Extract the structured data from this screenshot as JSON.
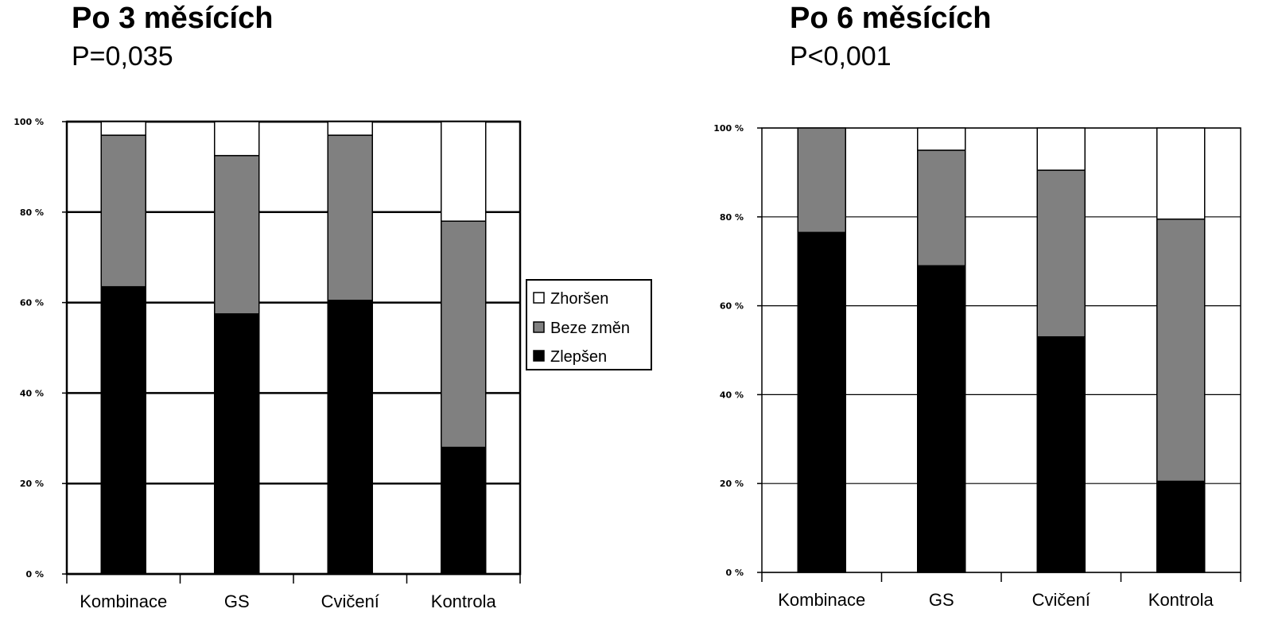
{
  "charts": [
    {
      "title": "Po 3  měsících",
      "subtitle": "P=0,035"
    },
    {
      "title": "Po 6  měsících",
      "subtitle": "P<0,001"
    }
  ],
  "legend": {
    "items": [
      {
        "label": "Zhoršen",
        "color": "#ffffff"
      },
      {
        "label": "Beze změn",
        "color": "#808080"
      },
      {
        "label": "Zlepšen",
        "color": "#000000"
      }
    ]
  },
  "chart_data": [
    {
      "type": "bar",
      "stacked": true,
      "percent": true,
      "title": "Po 3  měsících",
      "subtitle": "P=0,035",
      "categories": [
        "Kombinace",
        "GS",
        "Cvičení",
        "Kontrola"
      ],
      "series": [
        {
          "name": "Zlepšen",
          "color": "#000000",
          "values": [
            63.5,
            57.5,
            60.5,
            28
          ]
        },
        {
          "name": "Beze změn",
          "color": "#808080",
          "values": [
            33.5,
            35,
            36.5,
            50
          ]
        },
        {
          "name": "Zhoršen",
          "color": "#ffffff",
          "values": [
            3,
            7.5,
            3,
            22
          ]
        }
      ],
      "ylim": [
        0,
        100
      ],
      "yticks": [
        "0 %",
        "20 %",
        "40 %",
        "60 %",
        "80 %",
        "100 %"
      ],
      "grid": true,
      "legend_placement": "right"
    },
    {
      "type": "bar",
      "stacked": true,
      "percent": true,
      "title": "Po 6  měsících",
      "subtitle": "P<0,001",
      "categories": [
        "Kombinace",
        "GS",
        "Cvičení",
        "Kontrola"
      ],
      "series": [
        {
          "name": "Zlepšen",
          "color": "#000000",
          "values": [
            76.5,
            69,
            53,
            20.5
          ]
        },
        {
          "name": "Beze změn",
          "color": "#808080",
          "values": [
            23.5,
            26,
            37.5,
            59
          ]
        },
        {
          "name": "Zhoršen",
          "color": "#ffffff",
          "values": [
            0,
            5,
            9.5,
            20.5
          ]
        }
      ],
      "ylim": [
        0,
        100
      ],
      "yticks": [
        "0 %",
        "20 %",
        "40 %",
        "60 %",
        "80 %",
        "100 %"
      ],
      "grid": true
    }
  ]
}
